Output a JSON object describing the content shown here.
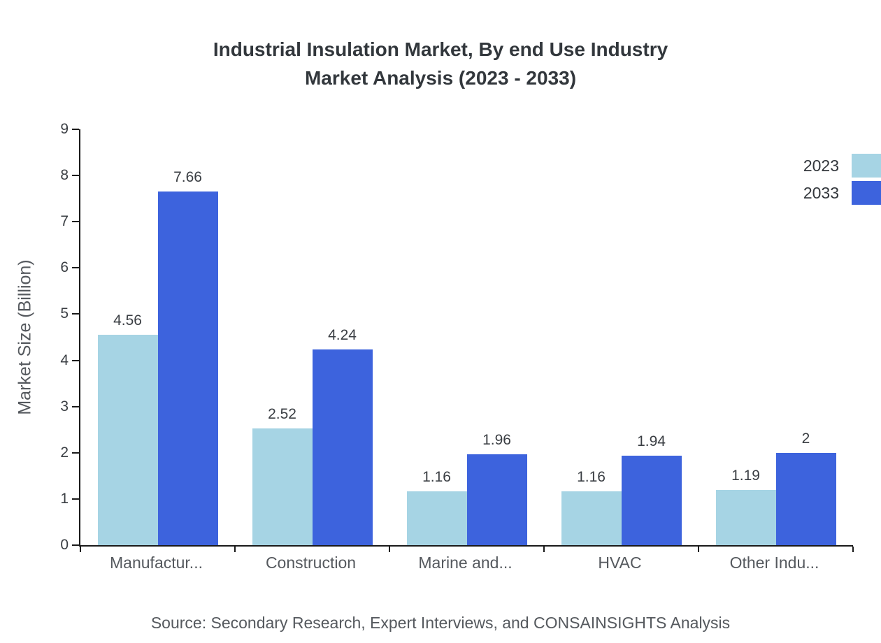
{
  "chart_data": {
    "type": "bar",
    "title_line1": "Industrial Insulation Market, By end Use Industry",
    "title_line2": "Market Analysis (2023 - 2033)",
    "ylabel": "Market Size (Billion)",
    "xlabel": "",
    "categories": [
      "Manufactur...",
      "Construction",
      "Marine and...",
      "HVAC",
      "Other Indu..."
    ],
    "series": [
      {
        "name": "2023",
        "color": "#a6d4e4",
        "values": [
          4.56,
          2.52,
          1.16,
          1.16,
          1.19
        ]
      },
      {
        "name": "2033",
        "color": "#3d63dd",
        "values": [
          7.66,
          4.24,
          1.96,
          1.94,
          2
        ]
      }
    ],
    "ylim": [
      0,
      9
    ],
    "ytick_step": 1,
    "grid": false,
    "legend_position": "top-right",
    "source": "Source: Secondary Research, Expert Interviews, and CONSAINSIGHTS Analysis"
  }
}
